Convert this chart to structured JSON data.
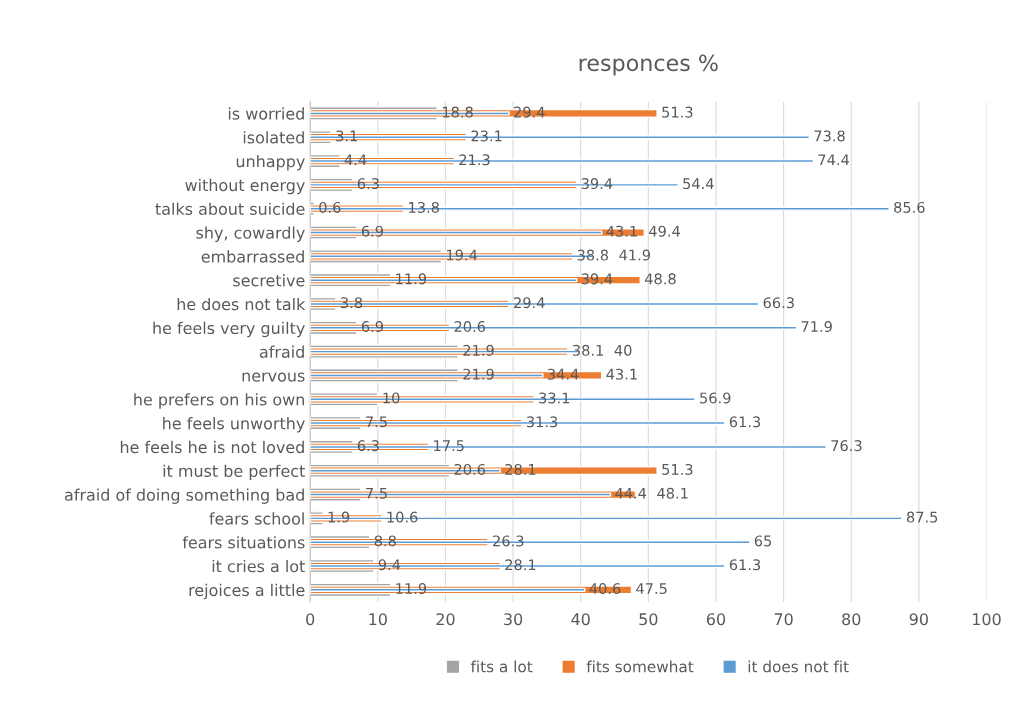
{
  "chart_data": {
    "type": "bar",
    "orientation": "horizontal",
    "title": "responces %",
    "categories": [
      "is worried",
      "isolated",
      "unhappy",
      "without energy",
      "talks about suicide",
      "shy, cowardly",
      "embarrassed",
      "secretive",
      "he does not talk",
      "he feels very guilty",
      "afraid",
      "nervous",
      "he prefers on his own",
      "he feels unworthy",
      "he feels he is not loved",
      "it must be perfect",
      "afraid of doing something bad",
      "fears school",
      "fears situations",
      "it cries a lot",
      "rejoices a little"
    ],
    "series": [
      {
        "name": "fits a lot",
        "color": "#a5a5a5",
        "values": [
          18.8,
          3.1,
          4.4,
          6.3,
          0.6,
          6.9,
          19.4,
          11.9,
          3.8,
          6.9,
          21.9,
          21.9,
          10,
          7.5,
          6.3,
          20.6,
          7.5,
          1.9,
          8.8,
          9.4,
          11.9
        ]
      },
      {
        "name": "fits somewhat",
        "color": "#ed7d31",
        "values": [
          51.3,
          23.1,
          21.3,
          39.4,
          13.8,
          49.4,
          38.8,
          48.8,
          29.4,
          20.6,
          38.1,
          43.1,
          33.1,
          31.3,
          17.5,
          51.3,
          48.1,
          10.6,
          26.3,
          28.1,
          47.5
        ]
      },
      {
        "name": "it does not fit",
        "color": "#5b9bd5",
        "values": [
          29.4,
          73.8,
          74.4,
          54.4,
          85.6,
          43.1,
          41.9,
          39.4,
          66.3,
          71.9,
          40,
          34.4,
          56.9,
          61.3,
          76.3,
          28.1,
          44.4,
          87.5,
          65,
          61.3,
          40.6
        ]
      }
    ],
    "xlim": [
      0,
      100
    ],
    "xticks": [
      0,
      10,
      20,
      30,
      40,
      50,
      60,
      70,
      80,
      90,
      100
    ],
    "grid": "x",
    "legend": "bottom",
    "data_labels": true
  }
}
